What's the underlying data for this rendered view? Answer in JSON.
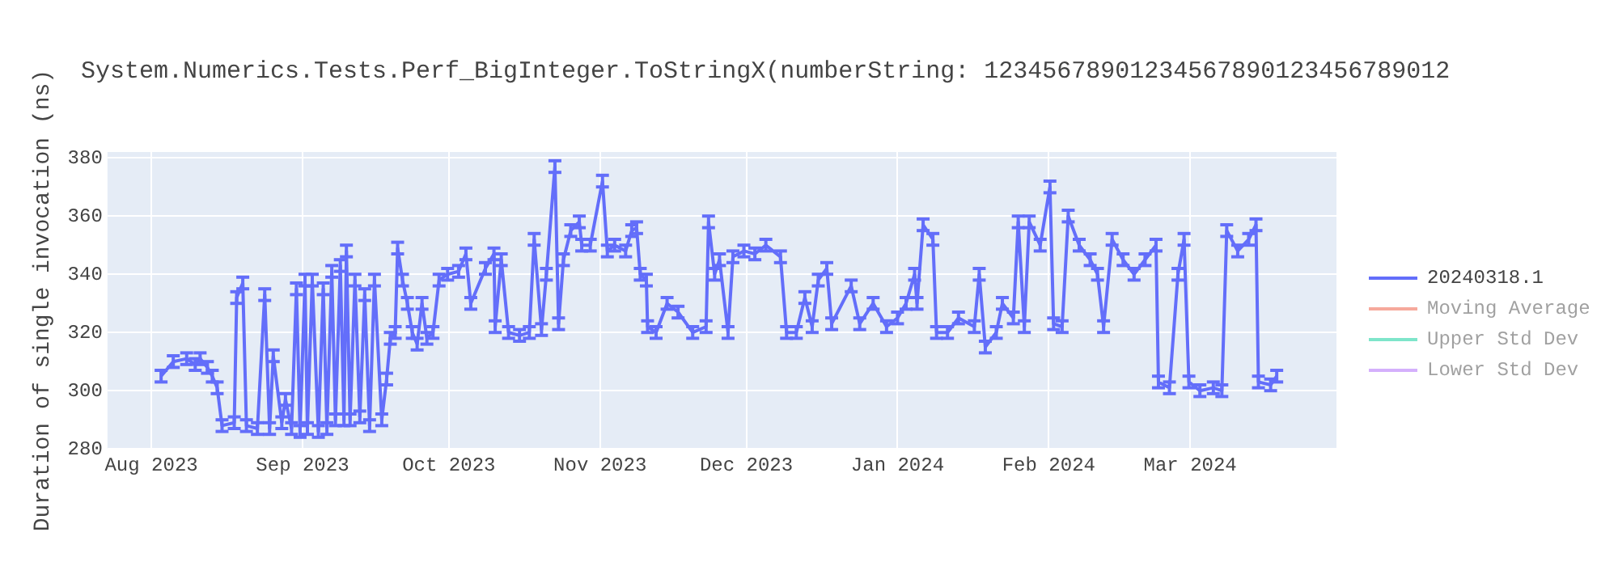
{
  "chart_data": {
    "type": "line",
    "title": "System.Numerics.Tests.Perf_BigInteger.ToStringX(numberString: 12345678901234567890123456789012",
    "xlabel": null,
    "ylabel": "Duration of single invocation (ns)",
    "xlim": [
      "2023-07-23",
      "2024-03-31"
    ],
    "xticks": [
      {
        "value": "2023-08-01",
        "label": "Aug 2023"
      },
      {
        "value": "2023-09-01",
        "label": "Sep 2023"
      },
      {
        "value": "2023-10-01",
        "label": "Oct 2023"
      },
      {
        "value": "2023-11-01",
        "label": "Nov 2023"
      },
      {
        "value": "2023-12-01",
        "label": "Dec 2023"
      },
      {
        "value": "2024-01-01",
        "label": "Jan 2024"
      },
      {
        "value": "2024-02-01",
        "label": "Feb 2024"
      },
      {
        "value": "2024-03-01",
        "label": "Mar 2024"
      }
    ],
    "ylim": [
      280,
      382
    ],
    "yticks": [
      280,
      300,
      320,
      340,
      360,
      380
    ],
    "grid": true,
    "legend": "right",
    "marker": "none",
    "line_style": "solid",
    "x": [
      "2023-08-03T00:00",
      "2023-08-05T12:00",
      "2023-08-08T06:00",
      "2023-08-10T00:00",
      "2023-08-11T00:00",
      "2023-08-12T12:00",
      "2023-08-13T12:00",
      "2023-08-14T12:00",
      "2023-08-15T12:00",
      "2023-08-18T00:00",
      "2023-08-18T12:00",
      "2023-08-19T18:00",
      "2023-08-20T12:00",
      "2023-08-22T18:00",
      "2023-08-24T06:00",
      "2023-08-25T06:00",
      "2023-08-26T00:00",
      "2023-08-27T18:00",
      "2023-08-28T12:00",
      "2023-08-29T18:00",
      "2023-08-30T18:00",
      "2023-08-31T12:00",
      "2023-09-01T12:00",
      "2023-09-02T00:00",
      "2023-09-03T00:00",
      "2023-09-04T06:00",
      "2023-09-05T06:00",
      "2023-09-06T00:00",
      "2023-09-07T00:00",
      "2023-09-07T18:00",
      "2023-09-08T18:00",
      "2023-09-09T12:00",
      "2023-09-10T00:00",
      "2023-09-10T18:00",
      "2023-09-11T18:00",
      "2023-09-12T18:00",
      "2023-09-13T18:00",
      "2023-09-14T18:00",
      "2023-09-15T18:00",
      "2023-09-17T06:00",
      "2023-09-18T06:00",
      "2023-09-19T00:00",
      "2023-09-20T00:00",
      "2023-09-20T12:00",
      "2023-09-21T12:00",
      "2023-09-22T12:00",
      "2023-09-23T12:00",
      "2023-09-24T12:00",
      "2023-09-25T12:00",
      "2023-09-26T12:00",
      "2023-09-27T18:00",
      "2023-09-29T00:00",
      "2023-09-30T18:00",
      "2023-10-03T00:00",
      "2023-10-04T12:00",
      "2023-10-05T12:00",
      "2023-10-08T12:00",
      "2023-10-10T06:00",
      "2023-10-10T12:00",
      "2023-10-11T18:00",
      "2023-10-13T06:00",
      "2023-10-15T12:00",
      "2023-10-17T12:00",
      "2023-10-18T12:00",
      "2023-10-20T00:00",
      "2023-10-21T00:00",
      "2023-10-22T18:00",
      "2023-10-23T12:00",
      "2023-10-24T12:00",
      "2023-10-26T00:00",
      "2023-10-27T18:00",
      "2023-10-28T06:00",
      "2023-10-30T00:00",
      "2023-11-01T12:00",
      "2023-11-02T12:00",
      "2023-11-04T00:00",
      "2023-11-06T06:00",
      "2023-11-07T12:00",
      "2023-11-08T12:00",
      "2023-11-09T06:00",
      "2023-11-10T12:00",
      "2023-11-10T18:00",
      "2023-11-12T12:00",
      "2023-11-14T18:00",
      "2023-11-17T00:00",
      "2023-11-20T00:00",
      "2023-11-22T18:00",
      "2023-11-23T06:00",
      "2023-11-24T12:00",
      "2023-11-25T12:00",
      "2023-11-27T06:00",
      "2023-11-28T06:00",
      "2023-11-30T12:00",
      "2023-12-02T18:00",
      "2023-12-05T00:00",
      "2023-12-08T00:00",
      "2023-12-09T06:00",
      "2023-12-11T06:00",
      "2023-12-13T00:00",
      "2023-12-14T12:00",
      "2023-12-15T18:00",
      "2023-12-17T12:00",
      "2023-12-18T12:00",
      "2023-12-22T12:00",
      "2023-12-24T06:00",
      "2023-12-27T00:00",
      "2023-12-29T18:00",
      "2024-01-01T00:00",
      "2024-01-02T18:00",
      "2024-01-04T12:00",
      "2024-01-05T00:00",
      "2024-01-06T06:00",
      "2024-01-08T06:00",
      "2024-01-09T00:00",
      "2024-01-11T06:00",
      "2024-01-13T12:00",
      "2024-01-16T18:00",
      "2024-01-17T18:00",
      "2024-01-19T00:00",
      "2024-01-21T06:00",
      "2024-01-22T12:00",
      "2024-01-24T18:00",
      "2024-01-25T18:00",
      "2024-01-27T00:00",
      "2024-01-28T00:00",
      "2024-01-30T06:00",
      "2024-02-01T06:00",
      "2024-02-02T00:00",
      "2024-02-03T18:00",
      "2024-02-05T00:00",
      "2024-02-07T06:00",
      "2024-02-09T12:00",
      "2024-02-11T00:00",
      "2024-02-12T06:00",
      "2024-02-14T00:00",
      "2024-02-16T06:00",
      "2024-02-18T12:00",
      "2024-02-20T18:00",
      "2024-02-23T00:00",
      "2024-02-23T12:00",
      "2024-02-25T18:00",
      "2024-02-27T12:00",
      "2024-02-28T18:00",
      "2024-02-29T18:00",
      "2024-03-03T00:00",
      "2024-03-05T18:00",
      "2024-03-07T12:00",
      "2024-03-08T12:00",
      "2024-03-10T18:00",
      "2024-03-13T00:00",
      "2024-03-14T12:00",
      "2024-03-15T00:00",
      "2024-03-17T12:00",
      "2024-03-18T18:00"
    ],
    "series": [
      {
        "name": "20240318.1",
        "color": "#636efa",
        "values": [
          305,
          310,
          311,
          309,
          311,
          308,
          305,
          301,
          288,
          289,
          332,
          337,
          288,
          287,
          333,
          287,
          312,
          289,
          297,
          287,
          335,
          286,
          338,
          287,
          338,
          286,
          335,
          287,
          341,
          290,
          343,
          290,
          348,
          290,
          338,
          291,
          333,
          288,
          338,
          290,
          304,
          318,
          320,
          349,
          338,
          330,
          320,
          316,
          330,
          318,
          320,
          338,
          340,
          341,
          347,
          330,
          342,
          347,
          322,
          345,
          320,
          319,
          320,
          352,
          321,
          340,
          377,
          323,
          345,
          355,
          358,
          350,
          350,
          372,
          348,
          350,
          348,
          355,
          356,
          340,
          338,
          322,
          320,
          330,
          327,
          320,
          322,
          358,
          340,
          345,
          320,
          346,
          348,
          347,
          350,
          346,
          320,
          320,
          332,
          322,
          338,
          342,
          323,
          336,
          323,
          330,
          322,
          325,
          330,
          340,
          330,
          357,
          352,
          320,
          320,
          325,
          322,
          340,
          315,
          320,
          330,
          325,
          358,
          322,
          358,
          350,
          370,
          323,
          322,
          360,
          350,
          345,
          340,
          322,
          352,
          345,
          340,
          345,
          350,
          303,
          301,
          340,
          352,
          303,
          300,
          301,
          300,
          355,
          348,
          352,
          357,
          303,
          302,
          305
        ],
        "errors": [
          2,
          2,
          2,
          2,
          2,
          2,
          2,
          2,
          2,
          2,
          2,
          2,
          2,
          2,
          2,
          2,
          2,
          2,
          2,
          2,
          2,
          2,
          2,
          2,
          2,
          2,
          2,
          2,
          2,
          2,
          2,
          2,
          2,
          2,
          2,
          2,
          2,
          2,
          2,
          2,
          2,
          2,
          2,
          2,
          2,
          2,
          2,
          2,
          2,
          2,
          2,
          2,
          2,
          2,
          2,
          2,
          2,
          2,
          2,
          2,
          2,
          2,
          2,
          2,
          2,
          2,
          2,
          2,
          2,
          2,
          2,
          2,
          2,
          2,
          2,
          2,
          2,
          2,
          2,
          2,
          2,
          2,
          2,
          2,
          2,
          2,
          2,
          2,
          2,
          2,
          2,
          2,
          2,
          2,
          2,
          2,
          2,
          2,
          2,
          2,
          2,
          2,
          2,
          2,
          2,
          2,
          2,
          2,
          2,
          2,
          2,
          2,
          2,
          2,
          2,
          2,
          2,
          2,
          2,
          2,
          2,
          2,
          2,
          2,
          2,
          2,
          2,
          2,
          2,
          2,
          2,
          2,
          2,
          2,
          2,
          2,
          2,
          2,
          2,
          2,
          2,
          2,
          2,
          2,
          2,
          2,
          2,
          2,
          2,
          2,
          2,
          2,
          2,
          2
        ]
      },
      {
        "name": "Moving Average",
        "color": "#ef553b",
        "values": [
          null,
          null,
          null,
          null,
          null,
          null,
          null,
          null,
          null,
          null,
          null,
          null,
          null,
          null,
          null,
          null,
          null,
          null,
          null,
          null,
          null,
          null,
          null,
          null,
          null,
          null,
          null,
          null,
          null,
          null,
          null,
          null,
          null,
          null,
          null,
          null,
          null,
          null,
          null,
          null,
          null,
          null,
          null,
          null,
          null,
          null,
          null,
          null,
          null,
          null,
          null,
          null,
          null,
          null,
          null,
          null,
          null,
          null,
          null,
          null,
          null,
          null,
          null,
          null,
          null,
          null,
          null,
          null,
          null,
          null,
          null,
          null,
          null,
          null,
          null,
          null,
          null,
          null,
          null,
          null,
          null,
          null,
          null,
          null,
          null,
          null,
          null,
          null,
          null,
          null,
          null,
          null,
          null,
          null,
          null,
          null,
          null,
          null,
          null,
          null,
          null,
          null,
          null,
          null,
          null,
          null,
          null,
          null,
          null,
          null,
          null,
          null,
          null,
          null,
          null,
          null,
          null,
          null,
          null,
          null,
          null,
          null,
          null,
          null,
          null,
          null,
          null,
          null,
          null,
          null,
          null,
          null,
          null,
          null,
          null,
          null,
          null,
          null,
          null,
          null,
          null,
          null,
          null,
          null,
          null,
          null,
          null,
          null,
          null,
          null,
          null,
          null,
          null,
          null
        ]
      },
      {
        "name": "Upper Std Dev",
        "color": "#00cc96",
        "values": [
          null,
          null,
          null,
          null,
          null,
          null,
          null,
          null,
          null,
          null,
          null,
          null,
          null,
          null,
          null,
          null,
          null,
          null,
          null,
          null,
          null,
          null,
          null,
          null,
          null,
          null,
          null,
          null,
          null,
          null,
          null,
          null,
          null,
          null,
          null,
          null,
          null,
          null,
          null,
          null,
          null,
          null,
          null,
          null,
          null,
          null,
          null,
          null,
          null,
          null,
          null,
          null,
          null,
          null,
          null,
          null,
          null,
          null,
          null,
          null,
          null,
          null,
          null,
          null,
          null,
          null,
          null,
          null,
          null,
          null,
          null,
          null,
          null,
          null,
          null,
          null,
          null,
          null,
          null,
          null,
          null,
          null,
          null,
          null,
          null,
          null,
          null,
          null,
          null,
          null,
          null,
          null,
          null,
          null,
          null,
          null,
          null,
          null,
          null,
          null,
          null,
          null,
          null,
          null,
          null,
          null,
          null,
          null,
          null,
          null,
          null,
          null,
          null,
          null,
          null,
          null,
          null,
          null,
          null,
          null,
          null,
          null,
          null,
          null,
          null,
          null,
          null,
          null,
          null,
          null,
          null,
          null,
          null,
          null,
          null,
          null,
          null,
          null,
          null,
          null,
          null,
          null,
          null,
          null,
          null,
          null,
          null,
          null,
          null,
          null,
          null,
          null,
          null,
          null
        ]
      },
      {
        "name": "Lower Std Dev",
        "color": "#ab63fa",
        "values": [
          null,
          null,
          null,
          null,
          null,
          null,
          null,
          null,
          null,
          null,
          null,
          null,
          null,
          null,
          null,
          null,
          null,
          null,
          null,
          null,
          null,
          null,
          null,
          null,
          null,
          null,
          null,
          null,
          null,
          null,
          null,
          null,
          null,
          null,
          null,
          null,
          null,
          null,
          null,
          null,
          null,
          null,
          null,
          null,
          null,
          null,
          null,
          null,
          null,
          null,
          null,
          null,
          null,
          null,
          null,
          null,
          null,
          null,
          null,
          null,
          null,
          null,
          null,
          null,
          null,
          null,
          null,
          null,
          null,
          null,
          null,
          null,
          null,
          null,
          null,
          null,
          null,
          null,
          null,
          null,
          null,
          null,
          null,
          null,
          null,
          null,
          null,
          null,
          null,
          null,
          null,
          null,
          null,
          null,
          null,
          null,
          null,
          null,
          null,
          null,
          null,
          null,
          null,
          null,
          null,
          null,
          null,
          null,
          null,
          null,
          null,
          null,
          null,
          null,
          null,
          null,
          null,
          null,
          null,
          null,
          null,
          null,
          null,
          null,
          null,
          null,
          null,
          null,
          null,
          null,
          null,
          null,
          null,
          null,
          null,
          null,
          null,
          null,
          null,
          null,
          null,
          null,
          null,
          null,
          null,
          null,
          null,
          null,
          null,
          null,
          null,
          null,
          null,
          null
        ]
      }
    ]
  }
}
